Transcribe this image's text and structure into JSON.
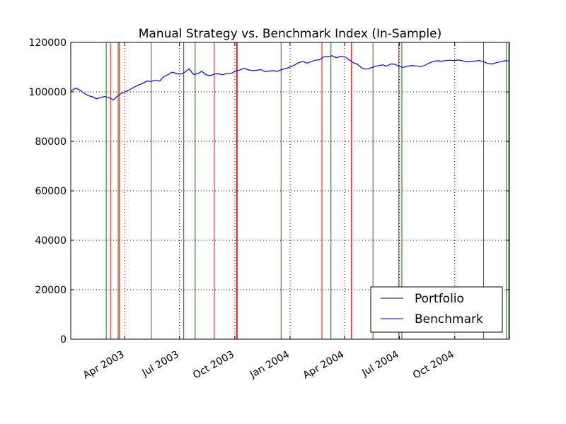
{
  "chart_data": {
    "type": "line",
    "title": "Manual Strategy vs. Benchmark Index (In-Sample)",
    "xlabel": "",
    "ylabel": "",
    "xlim": [
      "2003-01-01",
      "2004-12-31"
    ],
    "ylim": [
      0,
      120000
    ],
    "grid": true,
    "legend_position": "lower-right",
    "colors": {
      "portfolio": "#000000",
      "benchmark": "#0000ff",
      "long_entry": "#008000",
      "short_entry": "#ff0000",
      "grid": "#000000"
    },
    "y_ticks": [
      0,
      20000,
      40000,
      60000,
      80000,
      100000,
      120000
    ],
    "y_tick_labels": [
      "0",
      "20000",
      "40000",
      "60000",
      "80000",
      "100000",
      "120000"
    ],
    "x_ticks": [
      "2003-04-01",
      "2003-07-01",
      "2003-10-01",
      "2004-01-01",
      "2004-04-01",
      "2004-07-01",
      "2004-10-01"
    ],
    "x_tick_labels": [
      "Apr 2003",
      "Jul 2003",
      "Oct 2003",
      "Jan 2004",
      "Apr 2004",
      "Jul 2004",
      "Oct 2004"
    ],
    "series": [
      {
        "name": "Portfolio",
        "dates": [],
        "values": []
      },
      {
        "name": "Benchmark",
        "dates": [
          "2003-01-02",
          "2003-01-09",
          "2003-01-16",
          "2003-01-23",
          "2003-01-30",
          "2003-02-06",
          "2003-02-13",
          "2003-02-20",
          "2003-02-27",
          "2003-03-06",
          "2003-03-13",
          "2003-03-20",
          "2003-03-27",
          "2003-04-03",
          "2003-04-10",
          "2003-04-17",
          "2003-04-24",
          "2003-05-01",
          "2003-05-08",
          "2003-05-15",
          "2003-05-22",
          "2003-05-29",
          "2003-06-05",
          "2003-06-12",
          "2003-06-19",
          "2003-06-26",
          "2003-07-03",
          "2003-07-10",
          "2003-07-17",
          "2003-07-24",
          "2003-07-31",
          "2003-08-07",
          "2003-08-14",
          "2003-08-21",
          "2003-08-28",
          "2003-09-04",
          "2003-09-11",
          "2003-09-18",
          "2003-09-25",
          "2003-10-02",
          "2003-10-09",
          "2003-10-16",
          "2003-10-23",
          "2003-10-30",
          "2003-11-06",
          "2003-11-13",
          "2003-11-20",
          "2003-11-27",
          "2003-12-04",
          "2003-12-11",
          "2003-12-18",
          "2003-12-25",
          "2004-01-01",
          "2004-01-08",
          "2004-01-15",
          "2004-01-22",
          "2004-01-29",
          "2004-02-05",
          "2004-02-12",
          "2004-02-19",
          "2004-02-26",
          "2004-03-04",
          "2004-03-11",
          "2004-03-18",
          "2004-03-25",
          "2004-04-01",
          "2004-04-08",
          "2004-04-15",
          "2004-04-22",
          "2004-04-29",
          "2004-05-06",
          "2004-05-13",
          "2004-05-20",
          "2004-05-27",
          "2004-06-03",
          "2004-06-10",
          "2004-06-17",
          "2004-06-24",
          "2004-07-01",
          "2004-07-08",
          "2004-07-15",
          "2004-07-22",
          "2004-07-29",
          "2004-08-05",
          "2004-08-12",
          "2004-08-19",
          "2004-08-26",
          "2004-09-02",
          "2004-09-09",
          "2004-09-16",
          "2004-09-23",
          "2004-09-30",
          "2004-10-07",
          "2004-10-14",
          "2004-10-21",
          "2004-10-28",
          "2004-11-04",
          "2004-11-11",
          "2004-11-18",
          "2004-11-25",
          "2004-12-02",
          "2004-12-09",
          "2004-12-16",
          "2004-12-23",
          "2004-12-30"
        ],
        "values": [
          100500,
          101500,
          100800,
          99500,
          98500,
          98000,
          97200,
          97800,
          98100,
          97600,
          96800,
          98300,
          99500,
          100200,
          101000,
          102000,
          102800,
          103500,
          104400,
          104200,
          104800,
          104400,
          106200,
          107000,
          108000,
          107400,
          107200,
          108000,
          109300,
          107100,
          107300,
          108300,
          106900,
          106600,
          107200,
          107300,
          106900,
          107500,
          107500,
          108400,
          108800,
          109500,
          109000,
          108600,
          108700,
          109000,
          108200,
          108400,
          108600,
          108300,
          109000,
          109500,
          110000,
          110800,
          111800,
          112300,
          111600,
          112200,
          112800,
          113000,
          114200,
          114300,
          114600,
          113800,
          114400,
          114200,
          113000,
          111800,
          111200,
          109700,
          109200,
          109600,
          110200,
          110600,
          110900,
          110400,
          111300,
          111100,
          110200,
          109900,
          110400,
          110700,
          110500,
          110200,
          110700,
          111600,
          112300,
          112600,
          112400,
          112700,
          112800,
          112600,
          112900,
          112600,
          112100,
          112300,
          112500,
          112700,
          112200,
          111500,
          111300,
          111800,
          112200,
          112600,
          112500
        ]
      }
    ],
    "vertical_lines": {
      "long_entries": [
        "2003-03-01",
        "2003-03-21",
        "2003-05-15",
        "2003-07-27",
        "2003-10-05",
        "2003-12-17",
        "2004-03-09",
        "2004-05-18",
        "2004-07-05",
        "2004-12-26",
        "2004-12-30"
      ],
      "short_entries": [
        "2003-03-08",
        "2003-03-23",
        "2003-07-08",
        "2003-08-28",
        "2003-10-04",
        "2004-02-23",
        "2004-04-12",
        "2004-06-30",
        "2004-11-18"
      ]
    }
  }
}
